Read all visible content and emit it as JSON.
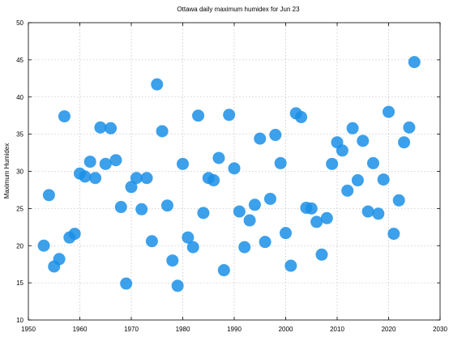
{
  "chart_data": {
    "type": "scatter",
    "title": "Ottawa daily maximum humidex for Jun 23",
    "xlabel": "",
    "ylabel": "Maximum Humidex",
    "xlim": [
      1950,
      2030
    ],
    "ylim": [
      10,
      50
    ],
    "xticks": [
      1950,
      1960,
      1970,
      1980,
      1990,
      2000,
      2010,
      2020,
      2030
    ],
    "yticks": [
      10,
      15,
      20,
      25,
      30,
      35,
      40,
      45,
      50
    ],
    "grid": true,
    "legend": "none",
    "point_color": "#1a8fe8",
    "points": [
      {
        "x": 1953,
        "y": 20.0
      },
      {
        "x": 1954,
        "y": 26.8
      },
      {
        "x": 1955,
        "y": 17.2
      },
      {
        "x": 1956,
        "y": 18.2
      },
      {
        "x": 1957,
        "y": 37.4
      },
      {
        "x": 1958,
        "y": 21.1
      },
      {
        "x": 1959,
        "y": 21.6
      },
      {
        "x": 1960,
        "y": 29.7
      },
      {
        "x": 1961,
        "y": 29.3
      },
      {
        "x": 1962,
        "y": 31.3
      },
      {
        "x": 1963,
        "y": 29.1
      },
      {
        "x": 1964,
        "y": 35.9
      },
      {
        "x": 1965,
        "y": 31.0
      },
      {
        "x": 1966,
        "y": 35.8
      },
      {
        "x": 1967,
        "y": 31.5
      },
      {
        "x": 1968,
        "y": 25.2
      },
      {
        "x": 1969,
        "y": 14.9
      },
      {
        "x": 1970,
        "y": 27.9
      },
      {
        "x": 1971,
        "y": 29.1
      },
      {
        "x": 1972,
        "y": 24.9
      },
      {
        "x": 1973,
        "y": 29.1
      },
      {
        "x": 1974,
        "y": 20.6
      },
      {
        "x": 1975,
        "y": 41.7
      },
      {
        "x": 1976,
        "y": 35.4
      },
      {
        "x": 1977,
        "y": 25.4
      },
      {
        "x": 1978,
        "y": 18.0
      },
      {
        "x": 1979,
        "y": 14.6
      },
      {
        "x": 1980,
        "y": 31.0
      },
      {
        "x": 1981,
        "y": 21.1
      },
      {
        "x": 1982,
        "y": 19.8
      },
      {
        "x": 1983,
        "y": 37.5
      },
      {
        "x": 1984,
        "y": 24.4
      },
      {
        "x": 1985,
        "y": 29.1
      },
      {
        "x": 1986,
        "y": 28.8
      },
      {
        "x": 1987,
        "y": 31.8
      },
      {
        "x": 1988,
        "y": 16.7
      },
      {
        "x": 1989,
        "y": 37.6
      },
      {
        "x": 1990,
        "y": 30.4
      },
      {
        "x": 1991,
        "y": 24.6
      },
      {
        "x": 1992,
        "y": 19.8
      },
      {
        "x": 1993,
        "y": 23.4
      },
      {
        "x": 1994,
        "y": 25.5
      },
      {
        "x": 1995,
        "y": 34.4
      },
      {
        "x": 1996,
        "y": 20.5
      },
      {
        "x": 1997,
        "y": 26.3
      },
      {
        "x": 1998,
        "y": 34.9
      },
      {
        "x": 1999,
        "y": 31.1
      },
      {
        "x": 2000,
        "y": 21.7
      },
      {
        "x": 2001,
        "y": 17.3
      },
      {
        "x": 2002,
        "y": 37.8
      },
      {
        "x": 2003,
        "y": 37.3
      },
      {
        "x": 2004,
        "y": 25.1
      },
      {
        "x": 2005,
        "y": 25.0
      },
      {
        "x": 2006,
        "y": 23.2
      },
      {
        "x": 2007,
        "y": 18.8
      },
      {
        "x": 2008,
        "y": 23.7
      },
      {
        "x": 2009,
        "y": 31.0
      },
      {
        "x": 2010,
        "y": 33.9
      },
      {
        "x": 2011,
        "y": 32.8
      },
      {
        "x": 2012,
        "y": 27.4
      },
      {
        "x": 2013,
        "y": 35.8
      },
      {
        "x": 2014,
        "y": 28.8
      },
      {
        "x": 2015,
        "y": 34.1
      },
      {
        "x": 2016,
        "y": 24.6
      },
      {
        "x": 2017,
        "y": 31.1
      },
      {
        "x": 2018,
        "y": 24.3
      },
      {
        "x": 2019,
        "y": 28.9
      },
      {
        "x": 2020,
        "y": 38.0
      },
      {
        "x": 2021,
        "y": 21.6
      },
      {
        "x": 2022,
        "y": 26.1
      },
      {
        "x": 2023,
        "y": 33.9
      },
      {
        "x": 2024,
        "y": 35.9
      },
      {
        "x": 2025,
        "y": 44.7
      }
    ]
  }
}
